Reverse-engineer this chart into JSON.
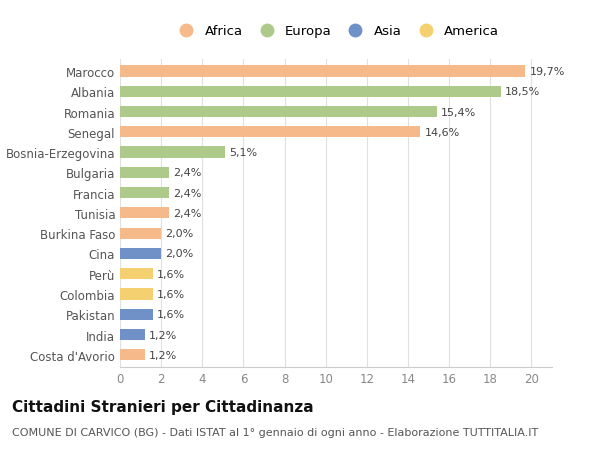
{
  "categories": [
    "Costa d'Avorio",
    "India",
    "Pakistan",
    "Colombia",
    "Perù",
    "Cina",
    "Burkina Faso",
    "Tunisia",
    "Francia",
    "Bulgaria",
    "Bosnia-Erzegovina",
    "Senegal",
    "Romania",
    "Albania",
    "Marocco"
  ],
  "values": [
    1.2,
    1.2,
    1.6,
    1.6,
    1.6,
    2.0,
    2.0,
    2.4,
    2.4,
    2.4,
    5.1,
    14.6,
    15.4,
    18.5,
    19.7
  ],
  "labels": [
    "1,2%",
    "1,2%",
    "1,6%",
    "1,6%",
    "1,6%",
    "2,0%",
    "2,0%",
    "2,4%",
    "2,4%",
    "2,4%",
    "5,1%",
    "14,6%",
    "15,4%",
    "18,5%",
    "19,7%"
  ],
  "continents": [
    "Africa",
    "Asia",
    "Asia",
    "America",
    "America",
    "Asia",
    "Africa",
    "Africa",
    "Europa",
    "Europa",
    "Europa",
    "Africa",
    "Europa",
    "Europa",
    "Africa"
  ],
  "continent_colors": {
    "Africa": "#F5B98A",
    "Europa": "#AECA8A",
    "Asia": "#7090C8",
    "America": "#F5D070"
  },
  "legend_order": [
    "Africa",
    "Europa",
    "Asia",
    "America"
  ],
  "title": "Cittadini Stranieri per Cittadinanza",
  "subtitle": "COMUNE DI CARVICO (BG) - Dati ISTAT al 1° gennaio di ogni anno - Elaborazione TUTTITALIA.IT",
  "xlim": [
    0,
    21
  ],
  "xticks": [
    0,
    2,
    4,
    6,
    8,
    10,
    12,
    14,
    16,
    18,
    20
  ],
  "background_color": "#ffffff",
  "plot_bg_color": "#ffffff",
  "grid_color": "#e0e0e0",
  "bar_height": 0.55,
  "title_fontsize": 11,
  "subtitle_fontsize": 8,
  "tick_fontsize": 8.5,
  "label_fontsize": 8,
  "legend_fontsize": 9.5
}
